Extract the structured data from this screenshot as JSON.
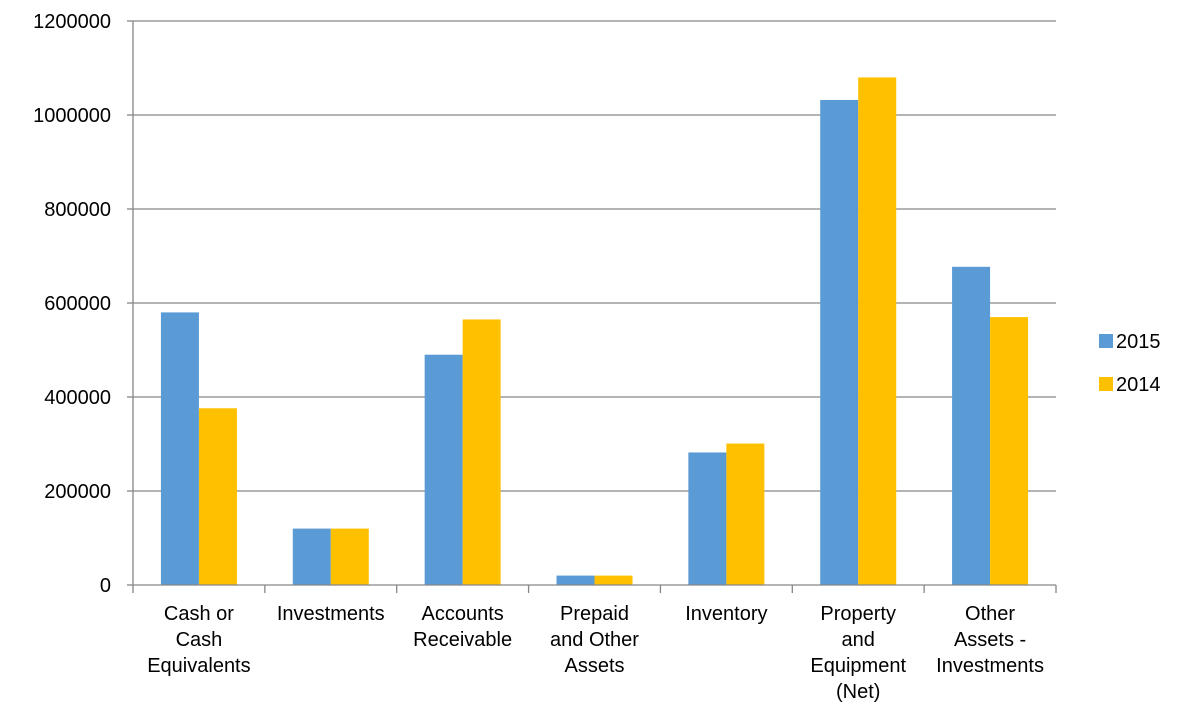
{
  "chart_data": {
    "type": "bar",
    "title": "",
    "xlabel": "",
    "ylabel": "",
    "ylim": [
      0,
      1200000
    ],
    "y_ticks": [
      0,
      200000,
      400000,
      600000,
      800000,
      1000000,
      1200000
    ],
    "y_tick_labels": [
      "0",
      "200000",
      "400000",
      "600000",
      "800000",
      "1000000",
      "1200000"
    ],
    "grid": true,
    "legend_position": "right",
    "categories": [
      [
        "Cash or",
        "Cash",
        "Equivalents"
      ],
      [
        "Investments"
      ],
      [
        "Accounts",
        "Receivable"
      ],
      [
        "Prepaid",
        "and Other",
        "Assets"
      ],
      [
        "Inventory"
      ],
      [
        "Property",
        "and",
        "Equipment",
        "(Net)"
      ],
      [
        "Other",
        "Assets -",
        "Investments"
      ]
    ],
    "series": [
      {
        "name": "2015",
        "color": "#5B9BD5",
        "values": [
          580000,
          120000,
          490000,
          20000,
          282000,
          1032000,
          677000
        ]
      },
      {
        "name": "2014",
        "color": "#FFC000",
        "values": [
          376000,
          120000,
          565000,
          20000,
          301000,
          1080000,
          570000
        ]
      }
    ]
  }
}
